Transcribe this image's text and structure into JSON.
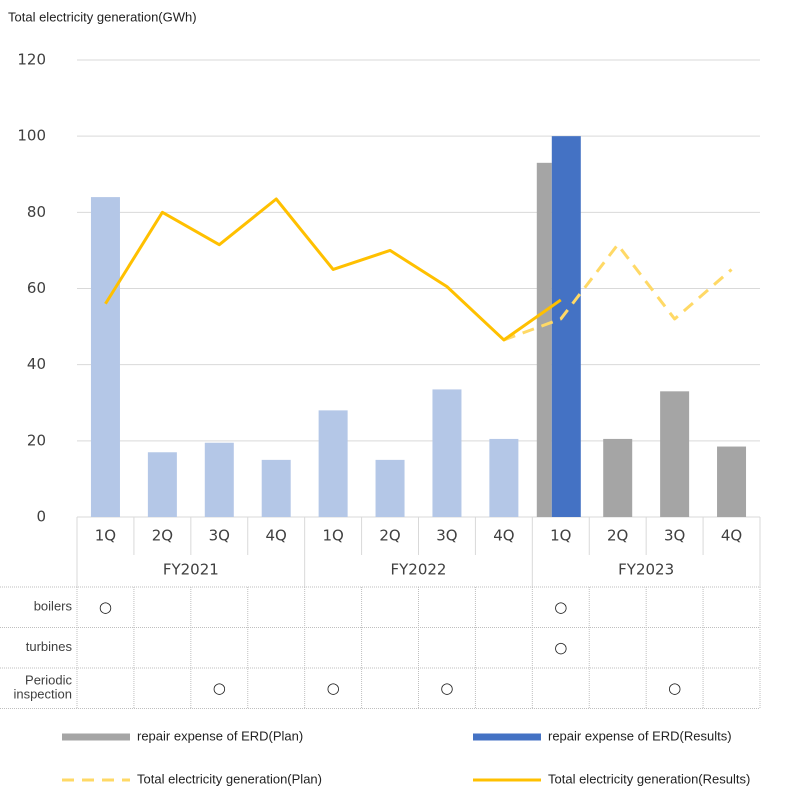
{
  "chart_data": {
    "type": "bar",
    "title": "Total electricity generation(GWh)",
    "categories": [
      "1Q",
      "2Q",
      "3Q",
      "4Q",
      "1Q",
      "2Q",
      "3Q",
      "4Q",
      "1Q",
      "2Q",
      "3Q",
      "4Q"
    ],
    "groups": [
      "FY2021",
      "FY2022",
      "FY2023"
    ],
    "series": [
      {
        "name": "repair expense of ERD(Plan)",
        "type": "bar",
        "color": "#a5a5a5",
        "values": [
          null,
          null,
          null,
          null,
          null,
          null,
          null,
          null,
          93,
          20.5,
          33,
          18.5
        ]
      },
      {
        "name": "repair expense of ERD(Results)",
        "type": "bar",
        "color": "#4472c4",
        "colors": [
          "#b4c7e7",
          "#b4c7e7",
          "#b4c7e7",
          "#b4c7e7",
          "#b4c7e7",
          "#b4c7e7",
          "#b4c7e7",
          "#b4c7e7",
          "#4472c4",
          null,
          null,
          null
        ],
        "values": [
          84,
          17,
          19.5,
          15,
          28,
          15,
          33.5,
          20.5,
          100,
          null,
          null,
          null
        ]
      },
      {
        "name": "Total electricity generation(Plan)",
        "type": "line",
        "dashed": true,
        "color": "#ffd966",
        "values": [
          null,
          null,
          null,
          null,
          null,
          null,
          null,
          46.5,
          52,
          71.5,
          52,
          65
        ]
      },
      {
        "name": "Total electricity generation(Results)",
        "type": "line",
        "dashed": false,
        "color": "#ffc000",
        "values": [
          56,
          80,
          71.5,
          83.5,
          65,
          70,
          60.5,
          46.5,
          57,
          null,
          null,
          null
        ]
      }
    ],
    "ylim": [
      0,
      120
    ],
    "yticks": [
      0,
      20,
      40,
      60,
      80,
      100,
      120
    ],
    "grid": true,
    "table": [
      {
        "label": [
          "boilers"
        ],
        "cells": [
          "○",
          null,
          null,
          null,
          null,
          null,
          null,
          null,
          "○",
          null,
          null,
          null
        ]
      },
      {
        "label": [
          "turbines"
        ],
        "cells": [
          null,
          null,
          null,
          null,
          null,
          null,
          null,
          null,
          "○",
          null,
          null,
          null
        ]
      },
      {
        "label": [
          "Periodic",
          "inspection"
        ],
        "cells": [
          null,
          null,
          "○",
          null,
          "○",
          null,
          "○",
          null,
          null,
          null,
          "○",
          null
        ]
      }
    ]
  }
}
